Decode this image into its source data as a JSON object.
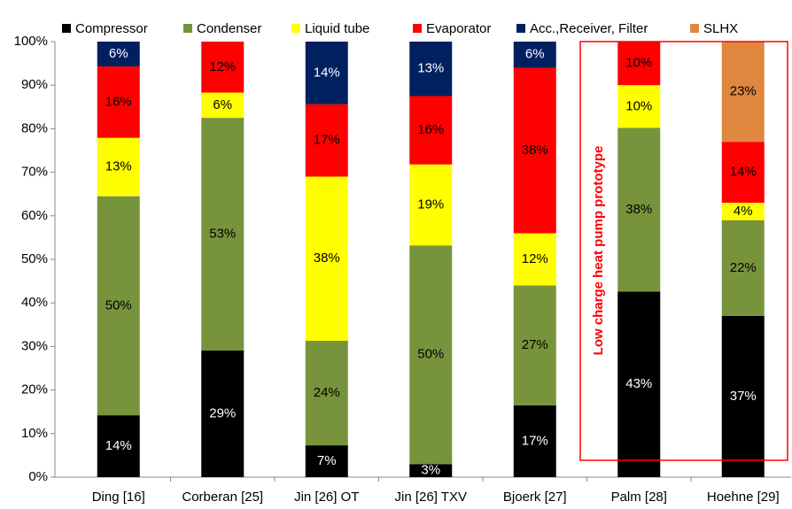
{
  "chart_data": {
    "type": "stacked_bar",
    "categories": [
      "Ding [16]",
      "Corberan [25]",
      "Jin [26] OT",
      "Jin [26] TXV",
      "Bjoerk [27]",
      "Palm [28]",
      "Hoehne [29]"
    ],
    "series": [
      {
        "name": "Compressor",
        "color": "#000000",
        "values": [
          14.2,
          29.1,
          7.3,
          3.0,
          16.5,
          42.6,
          37
        ],
        "value_labels": [
          "14%",
          "29%",
          "7%",
          "3%",
          "17%",
          "43%",
          "37%"
        ]
      },
      {
        "name": "Condenser",
        "color": "#77933c",
        "values": [
          50.3,
          53.4,
          24.0,
          50.2,
          27.5,
          37.6,
          22
        ],
        "value_labels": [
          "50%",
          "53%",
          "24%",
          "50%",
          "27%",
          "38%",
          "22%"
        ]
      },
      {
        "name": "Liquid tube",
        "color": "#ffff00",
        "values": [
          13.4,
          5.8,
          37.7,
          18.6,
          12,
          9.8,
          4
        ],
        "value_labels": [
          "13%",
          "6%",
          "38%",
          "19%",
          "12%",
          "10%",
          "4%"
        ]
      },
      {
        "name": "Evaporator",
        "color": "#ff0000",
        "values": [
          16.4,
          11.7,
          16.6,
          15.7,
          38,
          10.0,
          14
        ],
        "value_labels": [
          "16%",
          "12%",
          "17%",
          "16%",
          "38%",
          "10%",
          "14%"
        ]
      },
      {
        "name": "Acc.,Receiver, Filter",
        "color": "#002060",
        "values": [
          5.7,
          0,
          14.4,
          12.5,
          6,
          0,
          0
        ],
        "value_labels": [
          "6%",
          null,
          "14%",
          "13%",
          "6%",
          null,
          null
        ]
      },
      {
        "name": "SLHX",
        "color": "#e0873f",
        "values": [
          0,
          0,
          0,
          0,
          0,
          0,
          23
        ],
        "value_labels": [
          null,
          null,
          null,
          null,
          null,
          null,
          "23%"
        ]
      }
    ],
    "ylim": [
      0,
      100
    ],
    "yticks": [
      {
        "value": 0,
        "label": "0%"
      },
      {
        "value": 10,
        "label": "10%"
      },
      {
        "value": 20,
        "label": "20%"
      },
      {
        "value": 30,
        "label": "30%"
      },
      {
        "value": 40,
        "label": "40%"
      },
      {
        "value": 50,
        "label": "50%"
      },
      {
        "value": 60,
        "label": "60%"
      },
      {
        "value": 70,
        "label": "70%"
      },
      {
        "value": 80,
        "label": "80%"
      },
      {
        "value": 90,
        "label": "90%"
      },
      {
        "value": 100,
        "label": "100%"
      }
    ],
    "grid": false,
    "legend": "top",
    "annotation": "Low charge heat pump prototype"
  }
}
